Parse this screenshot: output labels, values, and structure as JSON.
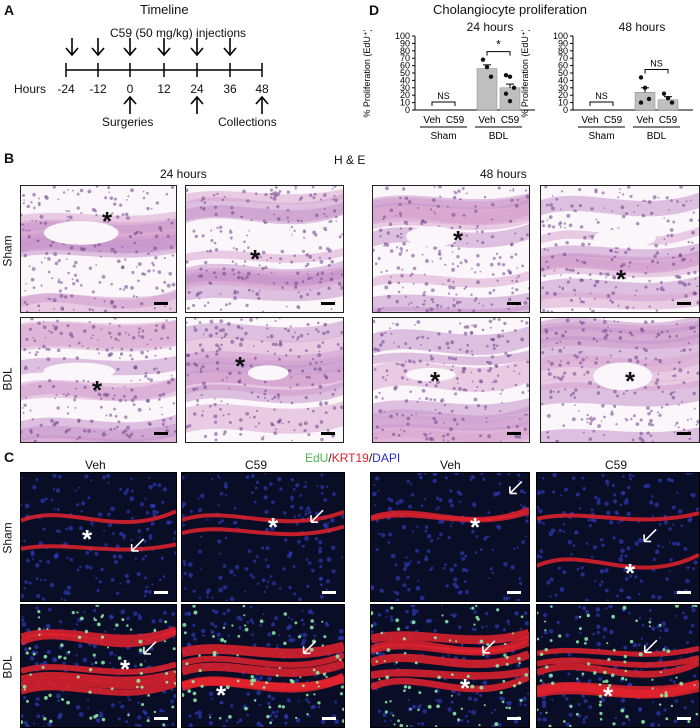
{
  "panel_letters": {
    "a": "A",
    "b": "B",
    "c": "C",
    "d": "D"
  },
  "timeline": {
    "title": "Timeline",
    "injection_label": "C59 (50 mg/kg) injections",
    "axis_label": "Hours",
    "ticks": [
      "-24",
      "-12",
      "0",
      "12",
      "24",
      "36",
      "48"
    ],
    "surgeries_label": "Surgeries",
    "collections_label": "Collections"
  },
  "proliferation": {
    "title": "Cholangiocyte proliferation",
    "ylabel": "% Proliferation (EdU⁺)",
    "groups": {
      "sham": "Sham",
      "bdl": "BDL"
    },
    "treatments": {
      "veh": "Veh",
      "c59": "C59"
    },
    "ns": "NS",
    "sig": "*"
  },
  "chart_data": [
    {
      "type": "bar",
      "title": "24 hours",
      "ylabel": "% Proliferation (EdU⁺)",
      "ylim": [
        0,
        100
      ],
      "yticks": [
        0,
        10,
        20,
        30,
        40,
        50,
        60,
        70,
        80,
        90,
        100
      ],
      "categories": [
        "Sham Veh",
        "Sham C59",
        "BDL Veh",
        "BDL C59"
      ],
      "values": [
        0,
        0,
        56,
        30
      ],
      "errors": [
        0,
        0,
        5,
        5
      ],
      "points": [
        [],
        [],
        [
          68,
          58,
          45
        ],
        [
          47,
          45,
          30,
          22,
          12
        ]
      ],
      "annotations": [
        {
          "between": [
            "Sham Veh",
            "Sham C59"
          ],
          "text": "NS"
        },
        {
          "between": [
            "BDL Veh",
            "BDL C59"
          ],
          "text": "*"
        }
      ]
    },
    {
      "type": "bar",
      "title": "48 hours",
      "ylabel": "% Proliferation (EdU⁺)",
      "ylim": [
        0,
        100
      ],
      "yticks": [
        0,
        10,
        20,
        30,
        40,
        50,
        60,
        70,
        80,
        90,
        100
      ],
      "categories": [
        "Sham Veh",
        "Sham C59",
        "BDL Veh",
        "BDL C59"
      ],
      "values": [
        0,
        0,
        24,
        14
      ],
      "errors": [
        0,
        0,
        6,
        4
      ],
      "points": [
        [],
        [],
        [
          44,
          30,
          15,
          10
        ],
        [
          22,
          16,
          10
        ]
      ],
      "annotations": [
        {
          "between": [
            "Sham Veh",
            "Sham C59"
          ],
          "text": "NS"
        },
        {
          "between": [
            "BDL Veh",
            "BDL C59"
          ],
          "text": "NS"
        }
      ]
    }
  ],
  "histology": {
    "center_title": "H & E",
    "time_24": "24 hours",
    "time_48": "48 hours",
    "veh": "Veh",
    "c59": "C59",
    "sham": "Sham",
    "bdl": "BDL",
    "star": "*"
  },
  "fluor": {
    "stain_edu": "EdU",
    "stain_sep": "/",
    "stain_krt": "KRT19",
    "stain_sep2": "/",
    "stain_dapi": "DAPI",
    "veh": "Veh",
    "c59": "C59",
    "sham": "Sham",
    "bdl": "BDL",
    "star": "*"
  },
  "colors": {
    "he_bg": "#efc8e0",
    "he_tissue": "#b27fbe",
    "fl_bg": "#0b0f2a",
    "krt19": "#e8232c",
    "edu": "#7ef0a0",
    "bar": "#bfbfbf"
  }
}
